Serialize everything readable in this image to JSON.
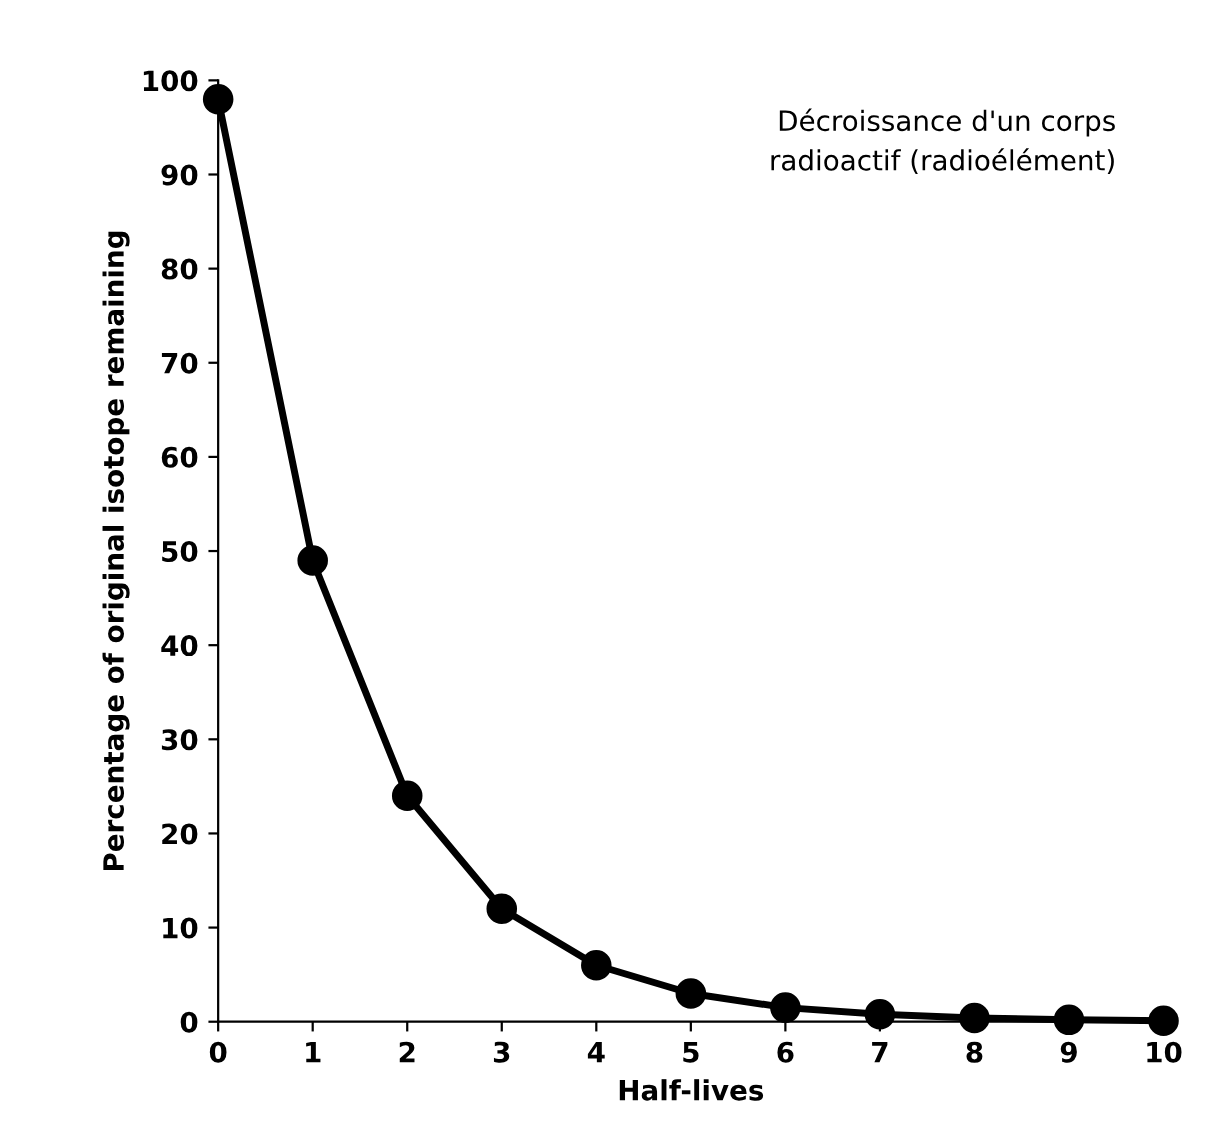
{
  "chart_data": {
    "type": "line",
    "xlabel": "Half-lives",
    "ylabel": "Percentage of original isotope remaining",
    "annotations": [
      "Décroissance d'un corps\nradioactif (radioélément)"
    ],
    "x": [
      0,
      1,
      2,
      3,
      4,
      5,
      6,
      7,
      8,
      9,
      10
    ],
    "series": [
      {
        "color": "#000000",
        "values": [
          98,
          49,
          24,
          12,
          6,
          3,
          1.5,
          0.8,
          0.4,
          0.2,
          0.1
        ]
      }
    ],
    "xlim": [
      0,
      10
    ],
    "ylim": [
      0,
      100
    ],
    "xticks": [
      0,
      1,
      2,
      3,
      4,
      5,
      6,
      7,
      8,
      9,
      10
    ],
    "yticks": [
      0,
      10,
      20,
      30,
      40,
      50,
      60,
      70,
      80,
      90,
      100
    ],
    "grid": false,
    "legend": false,
    "marker": "circle",
    "line_style": "solid"
  }
}
